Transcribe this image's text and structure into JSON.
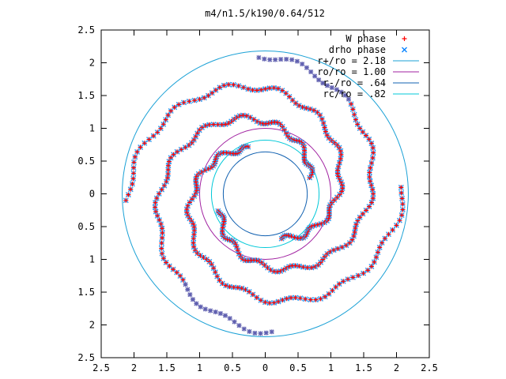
{
  "chart_data": {
    "type": "scatter",
    "title": "m4/n1.5/k190/0.64/512",
    "xlim": [
      -2.5,
      2.5
    ],
    "ylim": [
      -2.5,
      2.5
    ],
    "x_tick_values": [
      -2.5,
      -2,
      -1.5,
      -1,
      -0.5,
      0,
      0.5,
      1,
      1.5,
      2,
      2.5
    ],
    "x_tick_labels": [
      "2.5",
      "2",
      "1.5",
      "1",
      "0.5",
      "0",
      "0.5",
      "1",
      "1.5",
      "2",
      "2.5"
    ],
    "y_tick_values": [
      2.5,
      2,
      1.5,
      1,
      0.5,
      0,
      -0.5,
      -1,
      -1.5,
      -2,
      -2.5
    ],
    "y_tick_labels": [
      "2.5",
      "2",
      "1.5",
      "1",
      "0.5",
      "0",
      "0.5",
      "1",
      "1.5",
      "2",
      "2.5"
    ],
    "grid": false,
    "legend_position": "top-right",
    "legend": [
      {
        "label": "W phase",
        "kind": "marker-plus",
        "color": "#ff0000"
      },
      {
        "label": "drho phase",
        "kind": "marker-cross",
        "color": "#0080ff"
      },
      {
        "label": "r+/ro = 2.18",
        "kind": "line",
        "color": "#1ba1d6"
      },
      {
        "label": "ro/ro = 1.00",
        "kind": "line",
        "color": "#a020a0"
      },
      {
        "label": "r-/ro = .64",
        "kind": "line",
        "color": "#1060b0"
      },
      {
        "label": "rc/ro = .82",
        "kind": "line",
        "color": "#00c8d8"
      }
    ],
    "circles": [
      {
        "r": 2.18,
        "color": "#1ba1d6"
      },
      {
        "r": 1.0,
        "color": "#a020a0"
      },
      {
        "r": 0.64,
        "color": "#1060b0"
      },
      {
        "r": 0.82,
        "color": "#00c8d8"
      }
    ],
    "marker_colors": {
      "w_phase": "#ff0000",
      "drho_phase": "#3399ee",
      "outer": "#6060b0"
    },
    "series": [
      {
        "name": "W phase",
        "note": "spiral-arm phase points, 4 arms"
      },
      {
        "name": "drho phase",
        "note": "overlapping density phase points"
      }
    ],
    "spiral_arms": {
      "count": 4,
      "r_inner": 0.72,
      "r_outer": 2.12,
      "phase_offset_deg": [
        20,
        110,
        200,
        290
      ],
      "winding_deg_per_unit_r": 95
    }
  }
}
